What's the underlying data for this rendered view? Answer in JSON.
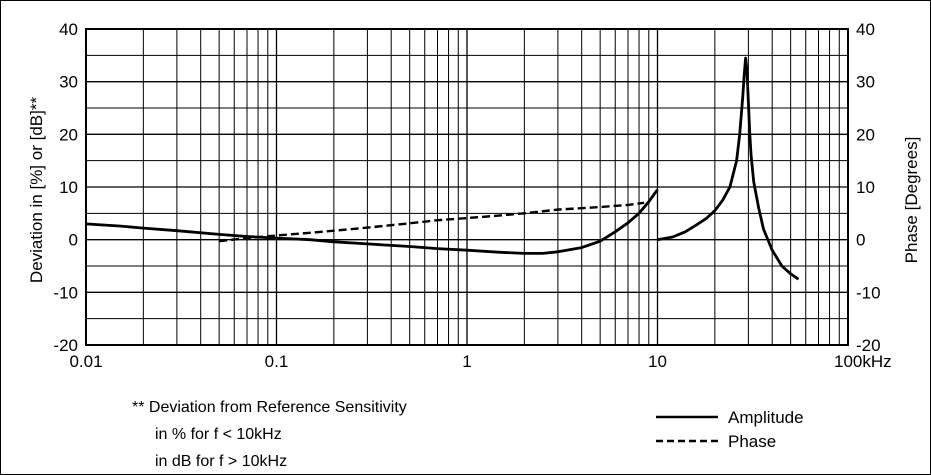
{
  "chart_data": {
    "type": "line",
    "xscale": "log",
    "xlim": [
      0.01,
      100
    ],
    "ylim": [
      -20,
      40
    ],
    "ylim_right": [
      -20,
      40
    ],
    "grid": true,
    "xlabel": "",
    "ylabel": "Deviation in [%] or [dB]**",
    "ylabel_right": "Phase [Degrees]",
    "x_ticks": [
      {
        "value": 0.01,
        "label": "0.01"
      },
      {
        "value": 0.1,
        "label": "0.1"
      },
      {
        "value": 1,
        "label": "1"
      },
      {
        "value": 10,
        "label": "10"
      },
      {
        "value": 100,
        "label": "100kHz"
      }
    ],
    "y_ticks": [
      {
        "value": 40,
        "label": "40"
      },
      {
        "value": 30,
        "label": "30"
      },
      {
        "value": 20,
        "label": "20"
      },
      {
        "value": 10,
        "label": "10"
      },
      {
        "value": 0,
        "label": "0"
      },
      {
        "value": -10,
        "label": "-10"
      },
      {
        "value": -20,
        "label": "-20"
      }
    ],
    "y_ticks_right": [
      {
        "value": 40,
        "label": "40"
      },
      {
        "value": 30,
        "label": "30"
      },
      {
        "value": 20,
        "label": "20"
      },
      {
        "value": 10,
        "label": "10"
      },
      {
        "value": 0,
        "label": "0"
      },
      {
        "value": -10,
        "label": "-10"
      },
      {
        "value": -20,
        "label": "-20"
      }
    ],
    "series": [
      {
        "name": "Amplitude",
        "style": "solid",
        "segments": [
          {
            "x": [
              0.01,
              0.012,
              0.015,
              0.02,
              0.03,
              0.05,
              0.07,
              0.1,
              0.15,
              0.2,
              0.3,
              0.5,
              0.7,
              1,
              1.5,
              2,
              2.5,
              3,
              4,
              5,
              6,
              7,
              8,
              9,
              10
            ],
            "y": [
              3,
              2.8,
              2.6,
              2.2,
              1.7,
              1,
              0.6,
              0.3,
              0,
              -0.4,
              -0.8,
              -1.3,
              -1.7,
              -2,
              -2.4,
              -2.6,
              -2.6,
              -2.3,
              -1.5,
              -0.3,
              1.5,
              3.2,
              5,
              7.2,
              9.5
            ]
          },
          {
            "x": [
              10,
              12,
              14,
              16,
              18,
              20,
              22,
              24,
              26,
              27,
              28,
              28.5,
              29,
              29.5,
              30,
              30.5,
              31,
              32,
              34,
              36,
              40,
              45,
              50,
              55
            ],
            "y": [
              0,
              0.5,
              1.5,
              2.8,
              4,
              5.5,
              7.5,
              10,
              15,
              20,
              27,
              31,
              34.5,
              32,
              26,
              20,
              16,
              11,
              6,
              2,
              -2,
              -5,
              -6.5,
              -7.5
            ]
          }
        ]
      },
      {
        "name": "Phase",
        "style": "dashed",
        "segments": [
          {
            "x": [
              0.05,
              0.07,
              0.1,
              0.15,
              0.2,
              0.3,
              0.5,
              0.7,
              1,
              1.5,
              2,
              3,
              5,
              7,
              8.5
            ],
            "y": [
              -0.3,
              0.3,
              0.8,
              1.3,
              1.7,
              2.3,
              3.1,
              3.7,
              4.1,
              4.6,
              5,
              5.7,
              6.2,
              6.6,
              7
            ]
          }
        ]
      }
    ],
    "footnote": [
      "** Deviation from Reference Sensitivity",
      "in % for f < 10kHz",
      "in dB for f > 10kHz"
    ],
    "legend_position": "bottom-right"
  }
}
